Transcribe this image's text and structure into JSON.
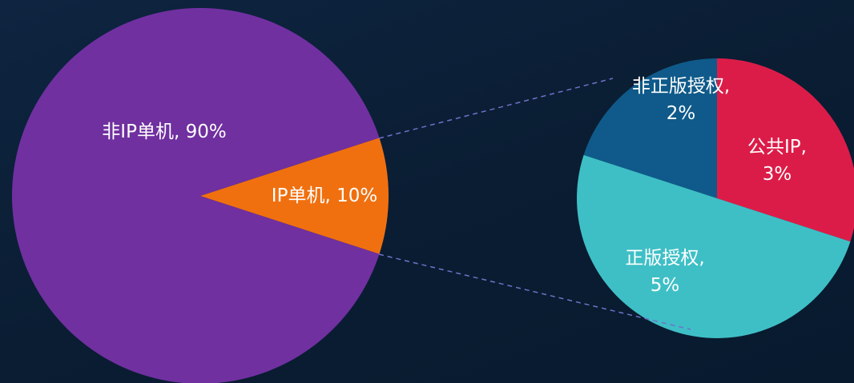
{
  "chart_data": [
    {
      "type": "pie",
      "values": [
        90,
        10
      ],
      "value_labels": [
        "非IP单机, 90%",
        "IP单机, 10%"
      ],
      "colors": [
        "#7030a0",
        "#f07010"
      ]
    },
    {
      "type": "pie",
      "values": [
        2,
        3,
        5
      ],
      "value_labels": [
        "非正版授权, 2%",
        "公共IP, 3%",
        "正版授权, 5%"
      ],
      "colors": [
        "#0f5a8a",
        "#dc1c48",
        "#3ebfc6"
      ]
    }
  ]
}
